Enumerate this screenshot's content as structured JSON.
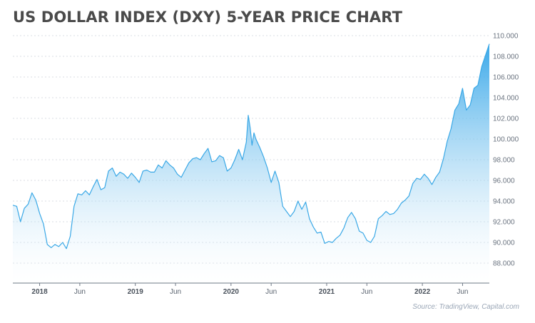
{
  "title": "US DOLLAR INDEX (DXY) 5-YEAR PRICE CHART",
  "source": "Source: TradingView, Capital.com",
  "colors": {
    "line": "#3aa8e6",
    "fill_top": "#2ea3e8",
    "fill_bottom": "#ffffff",
    "grid": "#d8dde3",
    "axis": "#6e7885"
  },
  "chart_data": {
    "type": "area",
    "title": "US DOLLAR INDEX (DXY) 5-YEAR PRICE CHART",
    "xlabel": "",
    "ylabel": "",
    "ylim": [
      87,
      110
    ],
    "xlim": [
      2017.72,
      2022.7
    ],
    "grid": true,
    "y_ticks": [
      "88.000",
      "90.000",
      "92.000",
      "94.000",
      "96.000",
      "98.000",
      "100.000",
      "102.000",
      "104.000",
      "106.000",
      "108.000",
      "110.000"
    ],
    "y_tick_values": [
      88,
      90,
      92,
      94,
      96,
      98,
      100,
      102,
      104,
      106,
      108,
      110
    ],
    "x_ticks": [
      {
        "label": "2018",
        "x": 2018.0,
        "year": true
      },
      {
        "label": "Jun",
        "x": 2018.42,
        "year": false
      },
      {
        "label": "2019",
        "x": 2019.0,
        "year": true
      },
      {
        "label": "Jun",
        "x": 2019.42,
        "year": false
      },
      {
        "label": "2020",
        "x": 2020.0,
        "year": true
      },
      {
        "label": "Jun",
        "x": 2020.42,
        "year": false
      },
      {
        "label": "2021",
        "x": 2021.0,
        "year": true
      },
      {
        "label": "Jun",
        "x": 2021.42,
        "year": false
      },
      {
        "label": "2022",
        "x": 2022.0,
        "year": true
      },
      {
        "label": "Jun",
        "x": 2022.42,
        "year": false
      }
    ],
    "series": [
      {
        "x": [
          2017.72,
          2017.76,
          2017.8,
          2017.84,
          2017.88,
          2017.92,
          2017.96,
          2018.0,
          2018.04,
          2018.08,
          2018.12,
          2018.16,
          2018.2,
          2018.24,
          2018.28,
          2018.32,
          2018.36,
          2018.4,
          2018.44,
          2018.48,
          2018.52,
          2018.56,
          2018.6,
          2018.64,
          2018.68,
          2018.72,
          2018.76,
          2018.8,
          2018.84,
          2018.88,
          2018.92,
          2018.96,
          2019.0,
          2019.04,
          2019.08,
          2019.12,
          2019.16,
          2019.2,
          2019.24,
          2019.28,
          2019.32,
          2019.36,
          2019.4,
          2019.44,
          2019.48,
          2019.52,
          2019.56,
          2019.6,
          2019.64,
          2019.68,
          2019.72,
          2019.76,
          2019.8,
          2019.84,
          2019.88,
          2019.92,
          2019.96,
          2020.0,
          2020.04,
          2020.08,
          2020.12,
          2020.16,
          2020.18,
          2020.2,
          2020.22,
          2020.24,
          2020.26,
          2020.3,
          2020.34,
          2020.38,
          2020.42,
          2020.46,
          2020.5,
          2020.54,
          2020.58,
          2020.62,
          2020.66,
          2020.7,
          2020.74,
          2020.78,
          2020.82,
          2020.86,
          2020.9,
          2020.94,
          2020.98,
          2021.02,
          2021.06,
          2021.1,
          2021.14,
          2021.18,
          2021.22,
          2021.26,
          2021.3,
          2021.34,
          2021.38,
          2021.42,
          2021.46,
          2021.5,
          2021.54,
          2021.58,
          2021.62,
          2021.66,
          2021.7,
          2021.74,
          2021.78,
          2021.82,
          2021.86,
          2021.9,
          2021.94,
          2021.98,
          2022.02,
          2022.06,
          2022.1,
          2022.14,
          2022.18,
          2022.22,
          2022.26,
          2022.3,
          2022.34,
          2022.38,
          2022.42,
          2022.46,
          2022.5,
          2022.54,
          2022.58,
          2022.62,
          2022.66,
          2022.7
        ],
        "values": [
          93.6,
          93.5,
          92.0,
          93.3,
          93.7,
          94.8,
          94.1,
          92.8,
          91.8,
          89.8,
          89.5,
          89.8,
          89.6,
          90.0,
          89.4,
          90.6,
          93.5,
          94.7,
          94.6,
          95.0,
          94.6,
          95.4,
          96.1,
          95.1,
          95.3,
          96.9,
          97.2,
          96.4,
          96.8,
          96.6,
          96.2,
          96.7,
          96.3,
          95.8,
          96.9,
          97.0,
          96.8,
          96.8,
          97.5,
          97.2,
          97.9,
          97.5,
          97.2,
          96.6,
          96.3,
          97.0,
          97.7,
          98.1,
          98.2,
          98.0,
          98.6,
          99.1,
          97.8,
          97.9,
          98.4,
          98.2,
          96.9,
          97.2,
          98.0,
          99.0,
          98.0,
          99.7,
          102.3,
          101.1,
          99.4,
          100.6,
          100.0,
          99.2,
          98.3,
          97.2,
          95.8,
          96.9,
          95.8,
          93.5,
          93.0,
          92.5,
          93.0,
          94.0,
          93.2,
          93.9,
          92.3,
          91.5,
          90.9,
          91.0,
          89.9,
          90.1,
          90.0,
          90.4,
          90.7,
          91.4,
          92.4,
          92.9,
          92.3,
          91.1,
          90.9,
          90.2,
          90.0,
          90.6,
          92.3,
          92.6,
          93.0,
          92.7,
          92.8,
          93.2,
          93.8,
          94.1,
          94.5,
          95.7,
          96.2,
          96.1,
          96.6,
          96.2,
          95.6,
          96.3,
          96.8,
          98.1,
          99.8,
          101.0,
          102.8,
          103.4,
          104.9,
          102.8,
          103.3,
          104.9,
          105.2,
          107.0,
          108.1,
          109.2
        ]
      }
    ]
  }
}
